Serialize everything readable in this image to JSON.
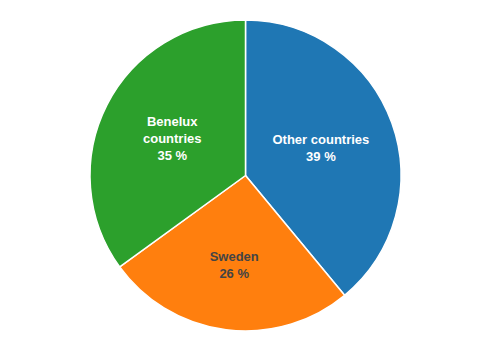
{
  "chart_data": {
    "type": "pie",
    "categories": [
      "Other countries",
      "Sweden",
      "Benelux\ncountries"
    ],
    "values": [
      39,
      26,
      35
    ],
    "value_labels": [
      "39 %",
      "26 %",
      "35 %"
    ],
    "data_labels": true
  }
}
